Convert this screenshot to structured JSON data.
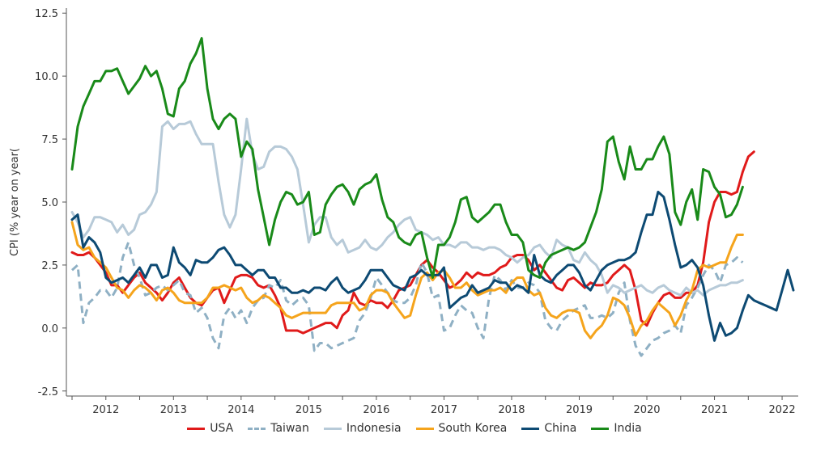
{
  "chart_data": {
    "type": "line",
    "ylabel": "CPI (% year on year(",
    "ylim": [
      -2.7,
      12.7
    ],
    "yticks": [
      "-2.5",
      "0.0",
      "2.5",
      "5.0",
      "7.5",
      "10.0",
      "12.5"
    ],
    "xticks": [
      "2012",
      "2013",
      "2014",
      "2015",
      "2016",
      "2017",
      "2018",
      "2019",
      "2020",
      "2021",
      "2022"
    ],
    "x_start": "2011-07",
    "grid": false,
    "legend_position": "bottom",
    "series": [
      {
        "name": "USA",
        "color": "#e01a1a",
        "dashed": false,
        "values": [
          3.0,
          2.9,
          2.9,
          3.0,
          2.8,
          2.5,
          2.2,
          1.7,
          1.7,
          1.4,
          1.7,
          2.0,
          2.2,
          1.8,
          1.6,
          1.4,
          1.1,
          1.4,
          1.8,
          2.0,
          1.6,
          1.2,
          1.0,
          0.9,
          1.2,
          1.5,
          1.6,
          1.0,
          1.5,
          2.0,
          2.1,
          2.1,
          2.0,
          1.7,
          1.6,
          1.7,
          1.3,
          0.8,
          -0.1,
          -0.1,
          -0.1,
          -0.2,
          -0.1,
          0.0,
          0.1,
          0.2,
          0.2,
          0.0,
          0.5,
          0.7,
          1.4,
          1.0,
          0.9,
          1.1,
          1.0,
          1.0,
          0.8,
          1.1,
          1.5,
          1.6,
          1.7,
          2.1,
          2.5,
          2.7,
          2.4,
          2.2,
          1.9,
          1.6,
          1.7,
          1.9,
          2.2,
          2.0,
          2.2,
          2.1,
          2.1,
          2.2,
          2.4,
          2.5,
          2.8,
          2.9,
          2.9,
          2.7,
          2.3,
          2.5,
          2.2,
          1.9,
          1.6,
          1.5,
          1.9,
          2.0,
          1.8,
          1.6,
          1.8,
          1.7,
          1.7,
          1.8,
          2.1,
          2.3,
          2.5,
          2.3,
          1.5,
          0.3,
          0.1,
          0.6,
          1.0,
          1.3,
          1.4,
          1.2,
          1.2,
          1.4,
          1.4,
          1.7,
          2.6,
          4.2,
          5.0,
          5.4,
          5.4,
          5.3,
          5.4,
          6.2,
          6.8,
          7.0
        ]
      },
      {
        "name": "Taiwan",
        "color": "#8fb0c4",
        "dashed": true,
        "values": [
          2.3,
          2.5,
          0.2,
          1.0,
          1.2,
          1.5,
          1.5,
          1.2,
          1.6,
          2.8,
          3.4,
          2.5,
          2.0,
          1.3,
          1.4,
          1.6,
          1.7,
          1.5,
          1.7,
          1.9,
          1.4,
          1.3,
          0.6,
          0.8,
          0.4,
          -0.4,
          -0.8,
          0.5,
          0.8,
          0.4,
          0.7,
          0.2,
          0.8,
          1.1,
          1.2,
          1.7,
          1.6,
          1.9,
          1.1,
          0.9,
          1.1,
          1.2,
          0.9,
          -0.9,
          -0.6,
          -0.6,
          -0.8,
          -0.7,
          -0.6,
          -0.5,
          -0.4,
          0.3,
          0.6,
          1.2,
          2.0,
          1.7,
          1.4,
          1.1,
          1.0,
          1.0,
          1.2,
          1.7,
          2.6,
          2.2,
          1.2,
          1.3,
          -0.1,
          0.0,
          0.5,
          0.9,
          0.7,
          0.6,
          0.0,
          -0.4,
          1.2,
          2.1,
          1.9,
          1.5,
          1.9,
          1.6,
          1.6,
          1.8,
          1.7,
          1.4,
          0.3,
          0.0,
          -0.1,
          0.3,
          0.5,
          0.7,
          0.8,
          0.9,
          0.4,
          0.4,
          0.5,
          0.4,
          0.6,
          1.4,
          1.8,
          0.3,
          -0.7,
          -1.1,
          -0.8,
          -0.5,
          -0.4,
          -0.2,
          -0.1,
          0.1,
          -0.2,
          0.9,
          1.2,
          1.6,
          2.1,
          2.5,
          2.3,
          1.8,
          2.5,
          2.6,
          2.8,
          2.6
        ]
      },
      {
        "name": "Indonesia",
        "color": "#b7cad8",
        "dashed": false,
        "values": [
          4.6,
          4.2,
          3.6,
          3.9,
          4.4,
          4.4,
          4.3,
          4.2,
          3.8,
          4.1,
          3.7,
          3.9,
          4.5,
          4.6,
          4.9,
          5.4,
          8.0,
          8.2,
          7.9,
          8.1,
          8.1,
          8.2,
          7.7,
          7.3,
          7.3,
          7.3,
          5.8,
          4.5,
          4.0,
          4.5,
          6.3,
          8.3,
          6.9,
          6.3,
          6.4,
          7.0,
          7.2,
          7.2,
          7.1,
          6.8,
          6.3,
          4.9,
          3.4,
          4.1,
          4.4,
          4.4,
          3.6,
          3.3,
          3.5,
          3.0,
          3.1,
          3.2,
          3.5,
          3.2,
          3.1,
          3.3,
          3.6,
          3.8,
          4.1,
          4.3,
          4.4,
          3.9,
          3.8,
          3.7,
          3.5,
          3.6,
          3.3,
          3.3,
          3.2,
          3.4,
          3.4,
          3.2,
          3.2,
          3.1,
          3.2,
          3.2,
          3.1,
          2.9,
          2.8,
          2.6,
          2.8,
          2.9,
          3.2,
          3.3,
          3.0,
          2.8,
          3.5,
          3.3,
          3.2,
          2.7,
          2.6,
          3.0,
          2.7,
          2.5,
          2.1,
          1.4,
          1.7,
          1.6,
          1.4,
          1.5,
          1.6,
          1.7,
          1.5,
          1.4,
          1.6,
          1.7,
          1.5,
          1.4,
          1.3,
          1.6,
          1.4,
          1.5,
          1.3,
          1.5,
          1.6,
          1.7,
          1.7,
          1.8,
          1.8,
          1.9
        ]
      },
      {
        "name": "South Korea",
        "color": "#f5a41c",
        "dashed": false,
        "values": [
          4.2,
          3.3,
          3.1,
          3.2,
          2.8,
          2.6,
          2.4,
          2.0,
          1.6,
          1.5,
          1.2,
          1.5,
          1.7,
          1.6,
          1.4,
          1.1,
          1.5,
          1.6,
          1.4,
          1.1,
          1.0,
          1.0,
          1.0,
          1.0,
          1.2,
          1.6,
          1.6,
          1.7,
          1.6,
          1.5,
          1.6,
          1.2,
          1.0,
          1.1,
          1.3,
          1.2,
          1.0,
          0.8,
          0.5,
          0.4,
          0.5,
          0.6,
          0.6,
          0.6,
          0.6,
          0.6,
          0.9,
          1.0,
          1.0,
          1.0,
          1.0,
          0.7,
          0.8,
          1.3,
          1.5,
          1.5,
          1.4,
          1.0,
          0.7,
          0.4,
          0.5,
          1.3,
          2.0,
          2.2,
          1.9,
          2.2,
          2.3,
          2.0,
          1.6,
          1.6,
          1.8,
          1.5,
          1.3,
          1.4,
          1.5,
          1.5,
          1.6,
          1.4,
          1.8,
          2.0,
          2.0,
          1.5,
          1.3,
          1.4,
          0.8,
          0.5,
          0.4,
          0.6,
          0.7,
          0.7,
          0.6,
          -0.1,
          -0.4,
          -0.1,
          0.1,
          0.5,
          1.2,
          1.1,
          0.9,
          0.4,
          -0.3,
          0.1,
          0.3,
          0.7,
          1.0,
          0.8,
          0.6,
          0.1,
          0.5,
          1.1,
          1.5,
          2.3,
          2.5,
          2.4,
          2.5,
          2.6,
          2.6,
          3.2,
          3.7,
          3.7
        ]
      },
      {
        "name": "China",
        "color": "#0d4a73",
        "dashed": false,
        "values": [
          4.3,
          4.5,
          3.2,
          3.6,
          3.4,
          3.0,
          2.0,
          1.8,
          1.9,
          2.0,
          1.8,
          2.1,
          2.4,
          2.0,
          2.5,
          2.5,
          2.0,
          2.1,
          3.2,
          2.6,
          2.4,
          2.1,
          2.7,
          2.6,
          2.6,
          2.8,
          3.1,
          3.2,
          2.9,
          2.5,
          2.5,
          2.3,
          2.1,
          2.3,
          2.3,
          2.0,
          2.0,
          1.6,
          1.6,
          1.4,
          1.4,
          1.5,
          1.4,
          1.6,
          1.6,
          1.5,
          1.8,
          2.0,
          1.6,
          1.4,
          1.5,
          1.6,
          1.9,
          2.3,
          2.3,
          2.3,
          2.0,
          1.7,
          1.6,
          1.5,
          2.0,
          2.1,
          2.3,
          2.1,
          2.1,
          2.1,
          2.4,
          0.8,
          1.0,
          1.2,
          1.3,
          1.7,
          1.4,
          1.5,
          1.6,
          1.9,
          1.8,
          1.8,
          1.5,
          1.7,
          1.6,
          1.4,
          2.9,
          2.1,
          1.9,
          1.8,
          2.1,
          2.3,
          2.5,
          2.5,
          2.2,
          1.7,
          1.5,
          1.9,
          2.3,
          2.5,
          2.6,
          2.7,
          2.7,
          2.8,
          3.0,
          3.8,
          4.5,
          4.5,
          5.4,
          5.2,
          4.3,
          3.3,
          2.4,
          2.5,
          2.7,
          2.4,
          1.7,
          0.5,
          -0.5,
          0.2,
          -0.3,
          -0.2,
          0.0,
          0.7,
          1.3,
          1.1,
          1.0,
          0.9,
          0.8,
          0.7,
          1.5,
          2.3,
          1.5
        ]
      },
      {
        "name": "India",
        "color": "#198a19",
        "dashed": false,
        "values": [
          6.3,
          8.0,
          8.8,
          9.3,
          9.8,
          9.8,
          10.2,
          10.2,
          10.3,
          9.8,
          9.3,
          9.6,
          9.9,
          10.4,
          10.0,
          10.2,
          9.5,
          8.5,
          8.4,
          9.5,
          9.8,
          10.5,
          10.9,
          11.5,
          9.5,
          8.3,
          7.9,
          8.3,
          8.5,
          8.3,
          6.8,
          7.4,
          7.1,
          5.5,
          4.4,
          3.3,
          4.3,
          5.0,
          5.4,
          5.3,
          4.9,
          5.0,
          5.4,
          3.7,
          3.8,
          4.9,
          5.3,
          5.6,
          5.7,
          5.4,
          4.9,
          5.5,
          5.7,
          5.8,
          6.1,
          5.1,
          4.4,
          4.2,
          3.6,
          3.4,
          3.3,
          3.7,
          3.8,
          2.8,
          2.0,
          3.3,
          3.3,
          3.6,
          4.2,
          5.1,
          5.2,
          4.4,
          4.2,
          4.4,
          4.6,
          4.9,
          4.9,
          4.2,
          3.7,
          3.7,
          3.4,
          2.3,
          2.1,
          2.0,
          2.6,
          2.9,
          3.0,
          3.1,
          3.2,
          3.1,
          3.2,
          3.4,
          4.0,
          4.6,
          5.5,
          7.4,
          7.6,
          6.6,
          5.9,
          7.2,
          6.3,
          6.3,
          6.7,
          6.7,
          7.2,
          7.6,
          6.9,
          4.6,
          4.1,
          5.0,
          5.5,
          4.3,
          6.3,
          6.2,
          5.6,
          5.3,
          4.4,
          4.5,
          4.9,
          5.6
        ]
      }
    ]
  }
}
